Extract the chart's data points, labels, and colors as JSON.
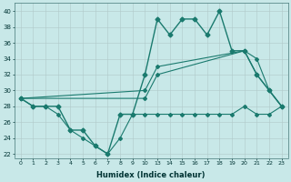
{
  "xlabel": "Humidex (Indice chaleur)",
  "background_color": "#c8e8e8",
  "line_color": "#1a7a6e",
  "xlim": [
    -0.5,
    23.5
  ],
  "ylim": [
    21.5,
    41.0
  ],
  "yticks": [
    22,
    24,
    26,
    28,
    30,
    32,
    34,
    36,
    38,
    40
  ],
  "xtick_positions": [
    0,
    1,
    2,
    3,
    4,
    5,
    6,
    7,
    8,
    9,
    10,
    13,
    14,
    15,
    16,
    17,
    18,
    19,
    20,
    21,
    22,
    23
  ],
  "xtick_labels": [
    "0",
    "1",
    "2",
    "3",
    "4",
    "5",
    "6",
    "7",
    "8",
    "9",
    "10",
    "13",
    "14",
    "15",
    "16",
    "17",
    "18",
    "19",
    "20",
    "21",
    "22",
    "23"
  ],
  "line1_x": [
    0,
    1,
    2,
    3,
    4,
    5,
    6,
    7,
    8,
    9,
    10,
    13,
    14,
    15,
    16,
    17,
    18,
    19,
    20,
    21,
    22,
    23
  ],
  "line1_y": [
    29,
    28,
    28,
    27,
    25,
    24,
    23,
    22,
    24,
    27,
    27,
    27,
    27,
    27,
    27,
    27,
    27,
    27,
    28,
    27,
    27,
    28
  ],
  "line2_x": [
    0,
    10,
    13,
    20,
    21,
    22,
    23
  ],
  "line2_y": [
    29,
    29,
    32,
    35,
    34,
    30,
    28
  ],
  "line3_x": [
    0,
    10,
    13,
    20,
    21,
    22,
    23
  ],
  "line3_y": [
    29,
    30,
    33,
    35,
    32,
    30,
    28
  ],
  "line4_x": [
    0,
    1,
    2,
    3,
    4,
    5,
    6,
    7,
    8,
    9,
    10,
    13,
    14,
    15,
    16,
    17,
    18,
    19,
    20,
    21,
    22,
    23
  ],
  "line4_y": [
    29,
    28,
    28,
    28,
    25,
    25,
    23,
    22,
    27,
    27,
    32,
    39,
    37,
    39,
    39,
    37,
    40,
    35,
    35,
    32,
    30,
    28
  ],
  "figwidth": 3.2,
  "figheight": 2.0,
  "dpi": 100
}
